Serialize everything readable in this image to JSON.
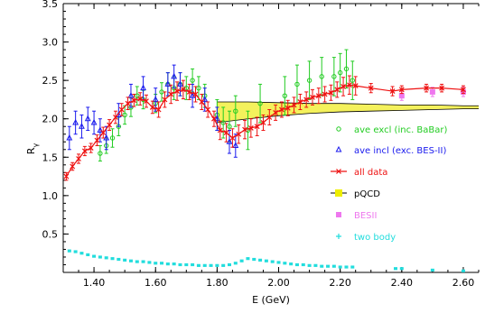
{
  "chart_data": {
    "type": "scatter",
    "xlabel": "E (GeV)",
    "ylabel": "R",
    "ylabel_sub": "γ",
    "xlim": [
      1.3,
      2.65
    ],
    "ylim": [
      0.0,
      3.5
    ],
    "x_ticks": [
      1.4,
      1.6,
      1.8,
      2.0,
      2.2,
      2.4,
      2.6
    ],
    "x_tick_labels": [
      "1.40",
      "1.60",
      "1.80",
      "2.00",
      "2.20",
      "2.40",
      "2.60"
    ],
    "y_ticks": [
      0.5,
      1.0,
      1.5,
      2.0,
      2.5,
      3.0,
      3.5
    ],
    "y_tick_labels": [
      "0.5",
      "1.0",
      "1.5",
      "2.0",
      "2.5",
      "3.0",
      "3.5"
    ],
    "legend": [
      {
        "label": "ave excl (inc. BaBar)",
        "color": "#22cc22",
        "marker": "circle"
      },
      {
        "label": "ave incl (exc. BES-II)",
        "color": "#1a1aee",
        "marker": "triangle"
      },
      {
        "label": "all data",
        "color": "#ee1111",
        "marker": "cross"
      },
      {
        "label": "pQCD",
        "color": "#eeee00",
        "marker": "band"
      },
      {
        "label": "BESII",
        "color": "#ee77ee",
        "marker": "square"
      },
      {
        "label": "two body",
        "color": "#22dddd",
        "marker": "plus"
      }
    ],
    "series": [
      {
        "name": "all data",
        "color": "#ee1111",
        "x": [
          1.31,
          1.33,
          1.35,
          1.37,
          1.39,
          1.41,
          1.43,
          1.45,
          1.47,
          1.49,
          1.51,
          1.53,
          1.55,
          1.57,
          1.59,
          1.61,
          1.63,
          1.65,
          1.67,
          1.69,
          1.71,
          1.73,
          1.75,
          1.77,
          1.79,
          1.81,
          1.83,
          1.85,
          1.87,
          1.89,
          1.91,
          1.93,
          1.95,
          1.97,
          1.99,
          2.01,
          2.03,
          2.05,
          2.07,
          2.09,
          2.11,
          2.13,
          2.15,
          2.17,
          2.19,
          2.21,
          2.23,
          2.25,
          2.3,
          2.37,
          2.4,
          2.48,
          2.53,
          2.6
        ],
        "y": [
          1.25,
          1.38,
          1.48,
          1.58,
          1.62,
          1.72,
          1.82,
          1.92,
          2.02,
          2.12,
          2.2,
          2.24,
          2.26,
          2.23,
          2.15,
          2.12,
          2.25,
          2.32,
          2.36,
          2.38,
          2.35,
          2.32,
          2.22,
          2.12,
          2.0,
          1.85,
          1.82,
          1.75,
          1.8,
          1.86,
          1.88,
          1.9,
          1.95,
          2.02,
          2.08,
          2.12,
          2.14,
          2.18,
          2.22,
          2.25,
          2.28,
          2.3,
          2.32,
          2.34,
          2.38,
          2.42,
          2.44,
          2.43,
          2.4,
          2.36,
          2.38,
          2.4,
          2.4,
          2.38
        ],
        "err": [
          0.05,
          0.05,
          0.06,
          0.06,
          0.06,
          0.07,
          0.07,
          0.07,
          0.08,
          0.08,
          0.08,
          0.08,
          0.08,
          0.08,
          0.08,
          0.1,
          0.1,
          0.12,
          0.12,
          0.12,
          0.1,
          0.1,
          0.1,
          0.1,
          0.1,
          0.12,
          0.12,
          0.12,
          0.12,
          0.12,
          0.12,
          0.12,
          0.1,
          0.1,
          0.1,
          0.1,
          0.1,
          0.1,
          0.1,
          0.1,
          0.1,
          0.1,
          0.1,
          0.1,
          0.1,
          0.12,
          0.12,
          0.12,
          0.06,
          0.06,
          0.05,
          0.05,
          0.05,
          0.05
        ]
      },
      {
        "name": "ave excl (inc. BaBar)",
        "color": "#22cc22",
        "x": [
          1.42,
          1.44,
          1.46,
          1.48,
          1.5,
          1.52,
          1.54,
          1.56,
          1.6,
          1.62,
          1.64,
          1.66,
          1.68,
          1.7,
          1.72,
          1.74,
          1.76,
          1.8,
          1.82,
          1.84,
          1.86,
          1.9,
          1.94,
          2.02,
          2.06,
          2.1,
          2.14,
          2.18,
          2.2,
          2.22,
          2.24
        ],
        "y": [
          1.55,
          1.65,
          1.75,
          1.9,
          2.05,
          2.15,
          2.3,
          2.25,
          2.2,
          2.35,
          2.45,
          2.4,
          2.45,
          2.4,
          2.5,
          2.4,
          2.3,
          2.05,
          1.95,
          1.9,
          2.1,
          1.85,
          2.2,
          2.3,
          2.45,
          2.5,
          2.55,
          2.55,
          2.6,
          2.65,
          2.5
        ],
        "err": [
          0.1,
          0.1,
          0.12,
          0.12,
          0.12,
          0.12,
          0.12,
          0.12,
          0.12,
          0.12,
          0.15,
          0.15,
          0.15,
          0.15,
          0.15,
          0.15,
          0.15,
          0.2,
          0.2,
          0.2,
          0.2,
          0.25,
          0.25,
          0.25,
          0.25,
          0.25,
          0.25,
          0.25,
          0.25,
          0.25,
          0.25
        ]
      },
      {
        "name": "ave incl (exc. BES-II)",
        "color": "#1a1aee",
        "x": [
          1.32,
          1.34,
          1.36,
          1.38,
          1.4,
          1.42,
          1.44,
          1.48,
          1.52,
          1.56,
          1.6,
          1.64,
          1.66,
          1.68,
          1.72,
          1.76,
          1.8,
          1.84,
          1.86
        ],
        "y": [
          1.75,
          1.95,
          1.9,
          2.0,
          1.95,
          1.85,
          1.75,
          2.05,
          2.3,
          2.4,
          2.25,
          2.45,
          2.55,
          2.45,
          2.3,
          2.25,
          2.0,
          1.7,
          1.65
        ],
        "err": [
          0.15,
          0.15,
          0.15,
          0.15,
          0.15,
          0.15,
          0.15,
          0.15,
          0.15,
          0.15,
          0.15,
          0.15,
          0.15,
          0.15,
          0.15,
          0.15,
          0.15,
          0.15,
          0.15
        ]
      },
      {
        "name": "BESII",
        "color": "#ee77ee",
        "x": [
          2.4,
          2.5,
          2.6
        ],
        "y": [
          2.3,
          2.35,
          2.35
        ],
        "err": [
          0.06,
          0.06,
          0.06
        ]
      },
      {
        "name": "two body",
        "color": "#22dddd",
        "x": [
          1.32,
          1.34,
          1.36,
          1.38,
          1.4,
          1.42,
          1.44,
          1.46,
          1.48,
          1.5,
          1.52,
          1.54,
          1.56,
          1.58,
          1.6,
          1.62,
          1.64,
          1.66,
          1.68,
          1.7,
          1.72,
          1.74,
          1.76,
          1.78,
          1.8,
          1.82,
          1.84,
          1.86,
          1.88,
          1.9,
          1.92,
          1.94,
          1.96,
          1.98,
          2.0,
          2.02,
          2.04,
          2.06,
          2.08,
          2.1,
          2.12,
          2.14,
          2.16,
          2.18,
          2.2,
          2.22,
          2.24,
          2.38,
          2.4,
          2.5,
          2.6
        ],
        "y": [
          0.28,
          0.27,
          0.25,
          0.23,
          0.21,
          0.2,
          0.19,
          0.18,
          0.17,
          0.16,
          0.15,
          0.14,
          0.14,
          0.13,
          0.12,
          0.12,
          0.11,
          0.11,
          0.1,
          0.1,
          0.1,
          0.09,
          0.09,
          0.09,
          0.09,
          0.09,
          0.1,
          0.12,
          0.15,
          0.18,
          0.17,
          0.16,
          0.15,
          0.14,
          0.13,
          0.12,
          0.11,
          0.1,
          0.1,
          0.09,
          0.09,
          0.08,
          0.08,
          0.08,
          0.07,
          0.07,
          0.07,
          0.05,
          0.05,
          0.03,
          0.02
        ]
      }
    ],
    "pqcd_band": {
      "x": [
        1.8,
        1.9,
        2.0,
        2.1,
        2.2,
        2.3,
        2.4,
        2.5,
        2.6,
        2.65
      ],
      "upper": [
        2.22,
        2.22,
        2.21,
        2.2,
        2.2,
        2.19,
        2.18,
        2.18,
        2.17,
        2.17
      ],
      "lower": [
        1.95,
        2.0,
        2.04,
        2.07,
        2.09,
        2.1,
        2.11,
        2.12,
        2.13,
        2.13
      ]
    }
  }
}
